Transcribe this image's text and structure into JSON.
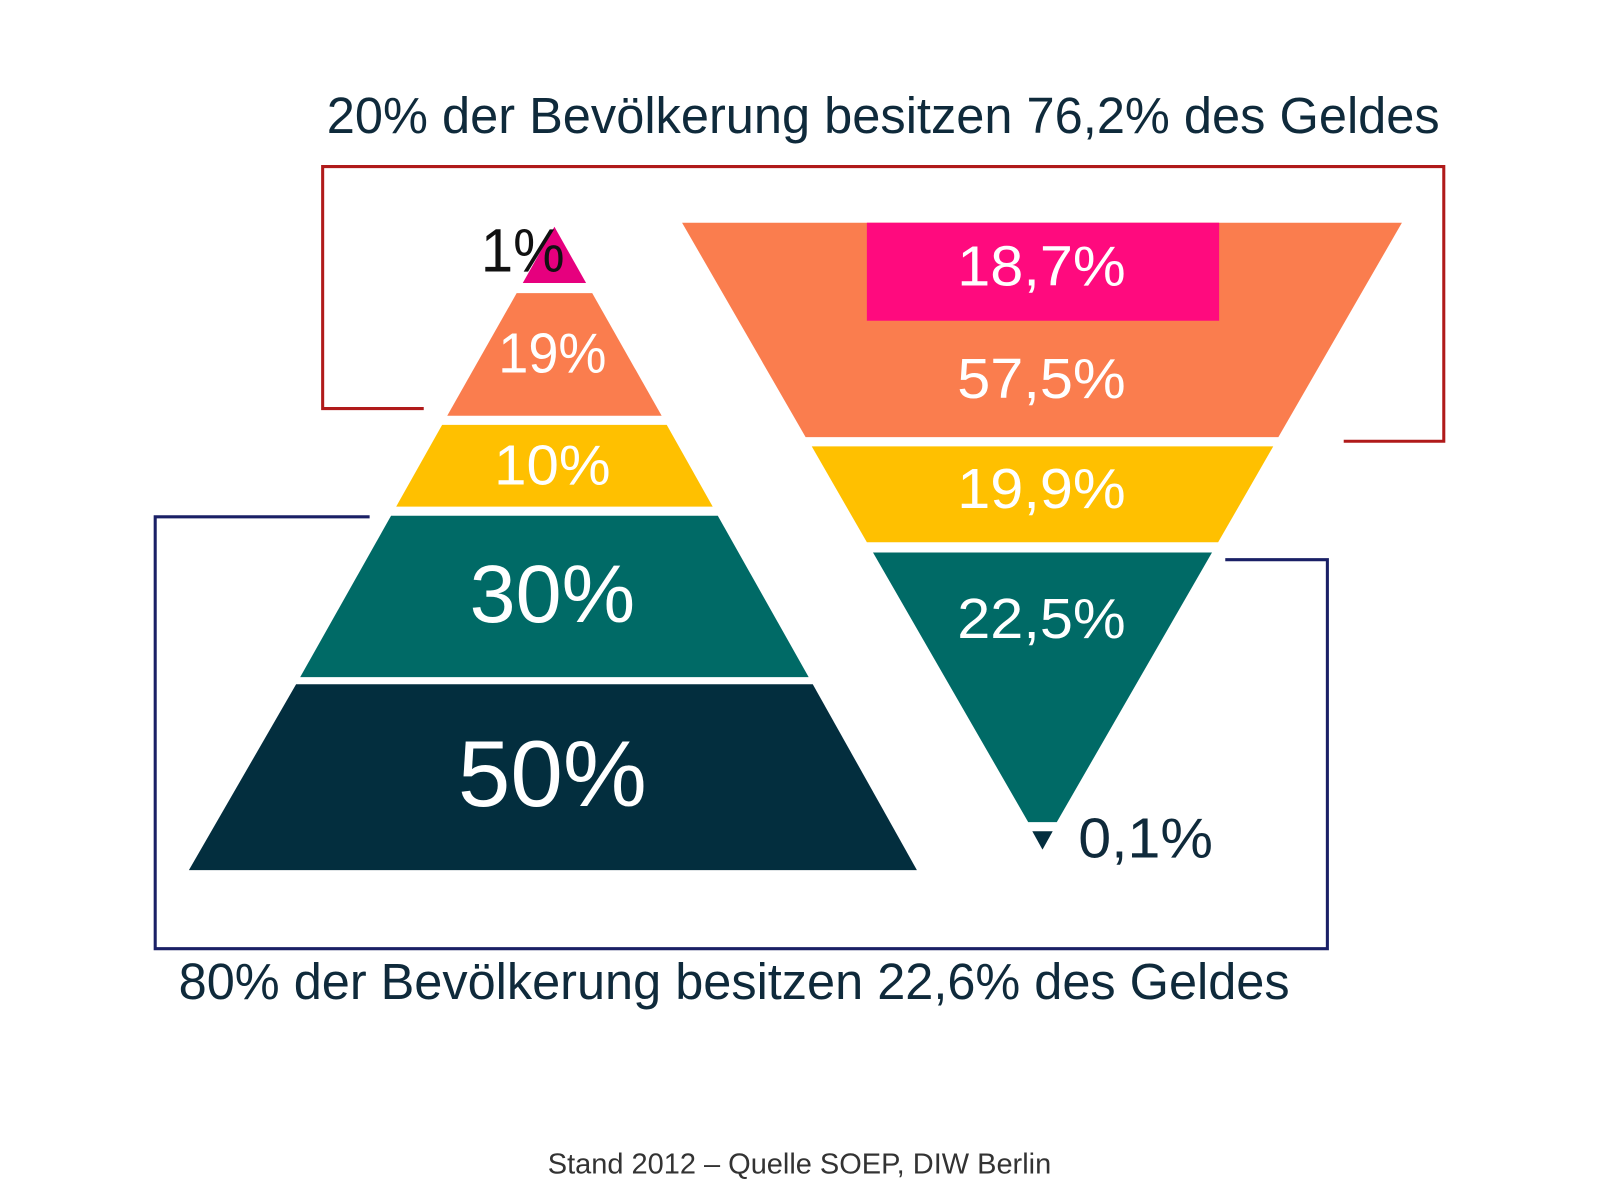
{
  "headline_top": "20% der Bevölkerung besitzen 76,2% des Geldes",
  "headline_bottom": "80% der Bevölkerung besitzen 22,6% des Geldes",
  "pyramid": {
    "segments": [
      {
        "label": "1%"
      },
      {
        "label": "19%"
      },
      {
        "label": "10%"
      },
      {
        "label": "30%"
      },
      {
        "label": "50%"
      }
    ]
  },
  "inverted": {
    "segments": [
      {
        "label": "18,7%"
      },
      {
        "label": "57,5%"
      },
      {
        "label": "19,9%"
      },
      {
        "label": "22,5%"
      },
      {
        "label": "0,1%"
      }
    ]
  },
  "footer": "Stand 2012 – Quelle SOEP, DIW Berlin"
}
